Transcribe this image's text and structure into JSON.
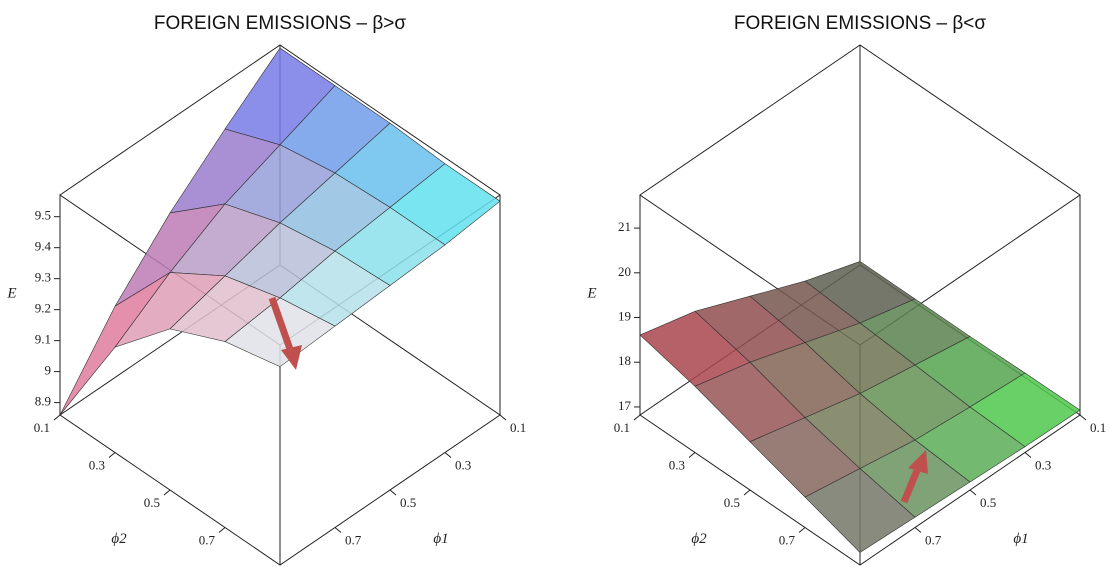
{
  "chart_data": [
    {
      "type": "surface",
      "title": "FOREIGN EMISSIONS – β>σ",
      "xlabel": "ϕ1",
      "ylabel": "ϕ2",
      "zlabel": "E",
      "xlim": [
        0.1,
        0.9
      ],
      "ylim": [
        0.1,
        0.9
      ],
      "zlim": [
        8.86,
        9.57
      ],
      "xticks": [
        0.1,
        0.3,
        0.5,
        0.7
      ],
      "yticks": [
        0.1,
        0.3,
        0.5,
        0.7
      ],
      "zticks": [
        8.9,
        9,
        9.1,
        9.2,
        9.3,
        9.4,
        9.5
      ],
      "x": [
        0.1,
        0.3,
        0.5,
        0.7,
        0.9
      ],
      "y": [
        0.1,
        0.3,
        0.5,
        0.7,
        0.9
      ],
      "z": [
        [
          9.56,
          9.56,
          9.56,
          9.55,
          9.55
        ],
        [
          9.42,
          9.49,
          9.52,
          9.53,
          9.53
        ],
        [
          9.27,
          9.42,
          9.48,
          9.51,
          9.52
        ],
        [
          9.09,
          9.32,
          9.43,
          9.48,
          9.51
        ],
        [
          8.86,
          9.2,
          9.38,
          9.46,
          9.5
        ]
      ],
      "corner_colors": [
        "#6a6af2",
        "#f06a82",
        "#48f0f0",
        "#f4f4f4"
      ]
    },
    {
      "type": "surface",
      "title": "FOREIGN EMISSIONS – β<σ",
      "xlabel": "ϕ1",
      "ylabel": "ϕ2",
      "zlabel": "E",
      "xlim": [
        0.1,
        0.9
      ],
      "ylim": [
        0.1,
        0.9
      ],
      "zlim": [
        16.82,
        21.74
      ],
      "xticks": [
        0.1,
        0.3,
        0.5,
        0.7
      ],
      "yticks": [
        0.1,
        0.3,
        0.5,
        0.7
      ],
      "zticks": [
        17,
        18,
        19,
        20,
        21
      ],
      "x": [
        0.1,
        0.3,
        0.5,
        0.7,
        0.9
      ],
      "y": [
        0.1,
        0.3,
        0.5,
        0.7,
        0.9
      ],
      "z": [
        [
          16.9,
          16.9,
          16.9,
          16.92,
          16.93
        ],
        [
          17.3,
          17.2,
          17.1,
          17.0,
          16.95
        ],
        [
          17.8,
          17.6,
          17.3,
          17.1,
          17.0
        ],
        [
          18.3,
          18.0,
          17.6,
          17.3,
          17.05
        ],
        [
          18.61,
          18.3,
          17.9,
          17.5,
          17.1
        ]
      ],
      "corner_colors": [
        "#505050",
        "#c03848",
        "#48e848",
        "#707070"
      ]
    }
  ]
}
